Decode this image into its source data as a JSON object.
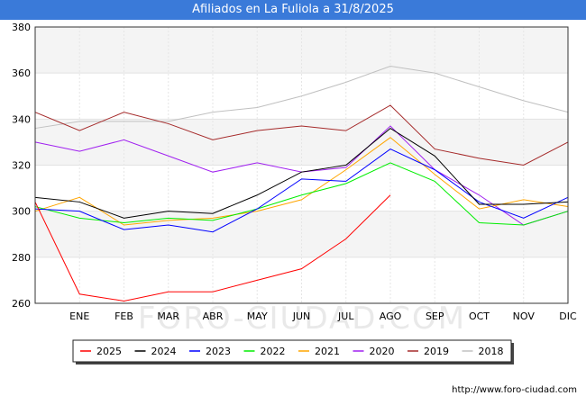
{
  "chart_data": {
    "type": "line",
    "title": "Afiliados en La Fuliola a 31/8/2025",
    "categories": [
      "",
      "ENE",
      "FEB",
      "MAR",
      "ABR",
      "MAY",
      "JUN",
      "JUL",
      "AGO",
      "SEP",
      "OCT",
      "NOV",
      "DIC"
    ],
    "ylim": [
      260,
      380
    ],
    "yticks": [
      260,
      280,
      300,
      320,
      340,
      360,
      380
    ],
    "series": [
      {
        "name": "2025",
        "color": "#ff0000",
        "values": [
          304,
          264,
          261,
          265,
          265,
          270,
          275,
          288,
          307,
          null,
          null,
          null,
          null
        ]
      },
      {
        "name": "2024",
        "color": "#000000",
        "values": [
          306,
          304,
          297,
          300,
          299,
          307,
          317,
          320,
          336,
          324,
          303,
          303,
          304
        ]
      },
      {
        "name": "2023",
        "color": "#0000ff",
        "values": [
          301,
          300,
          292,
          294,
          291,
          301,
          314,
          313,
          327,
          318,
          304,
          297,
          306
        ]
      },
      {
        "name": "2022",
        "color": "#00ee00",
        "values": [
          302,
          297,
          295,
          297,
          296,
          301,
          307,
          312,
          321,
          313,
          295,
          294,
          300
        ]
      },
      {
        "name": "2021",
        "color": "#ffa500",
        "values": [
          300,
          306,
          294,
          296,
          297,
          300,
          305,
          318,
          332,
          316,
          301,
          305,
          302
        ]
      },
      {
        "name": "2020",
        "color": "#a020f0",
        "values": [
          330,
          326,
          331,
          324,
          317,
          321,
          317,
          319,
          337,
          318,
          307,
          294,
          300
        ]
      },
      {
        "name": "2019",
        "color": "#a52a2a",
        "values": [
          343,
          335,
          343,
          338,
          331,
          335,
          337,
          335,
          346,
          327,
          323,
          320,
          330
        ]
      },
      {
        "name": "2018",
        "color": "#c0c0c0",
        "values": [
          336,
          339,
          339,
          339,
          343,
          345,
          350,
          356,
          363,
          360,
          354,
          348,
          343
        ]
      }
    ],
    "grid": true,
    "legend_position": "bottom"
  },
  "watermark": "FORO-CIUDAD.COM",
  "source": "http://www.foro-ciudad.com"
}
